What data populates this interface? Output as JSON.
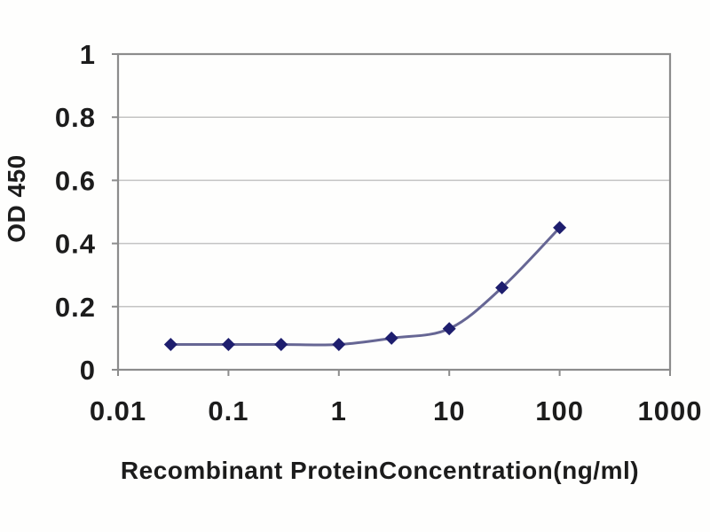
{
  "figure": {
    "background": "#fefefd"
  },
  "chart_data": {
    "type": "line",
    "title": "",
    "xlabel": "Recombinant ProteinConcentration(ng/ml)",
    "ylabel": "OD 450",
    "x_scale": "log",
    "y_scale": "linear",
    "xlim": [
      0.01,
      1000
    ],
    "ylim": [
      0,
      1
    ],
    "x_ticks": [
      0.01,
      0.1,
      1,
      10,
      100,
      1000
    ],
    "x_tick_labels": [
      "0.01",
      "0.1",
      "1",
      "10",
      "100",
      "1000"
    ],
    "y_ticks": [
      0,
      0.2,
      0.4,
      0.6,
      0.8,
      1
    ],
    "y_tick_labels": [
      "0",
      "0.2",
      "0.4",
      "0.6",
      "0.8",
      "1"
    ],
    "grid": "horizontal",
    "legend": "none",
    "series": [
      {
        "x": [
          0.03,
          0.1,
          0.3,
          1,
          3,
          10,
          30,
          100
        ],
        "y": [
          0.08,
          0.08,
          0.08,
          0.08,
          0.1,
          0.13,
          0.26,
          0.45
        ],
        "marker": "diamond",
        "smooth": true
      }
    ],
    "colors": {
      "line": "#666694",
      "marker": "#1e1e6e",
      "axis": "#8c8c8c",
      "grid": "#c4c4c4",
      "text": "#1c1c1c"
    }
  }
}
